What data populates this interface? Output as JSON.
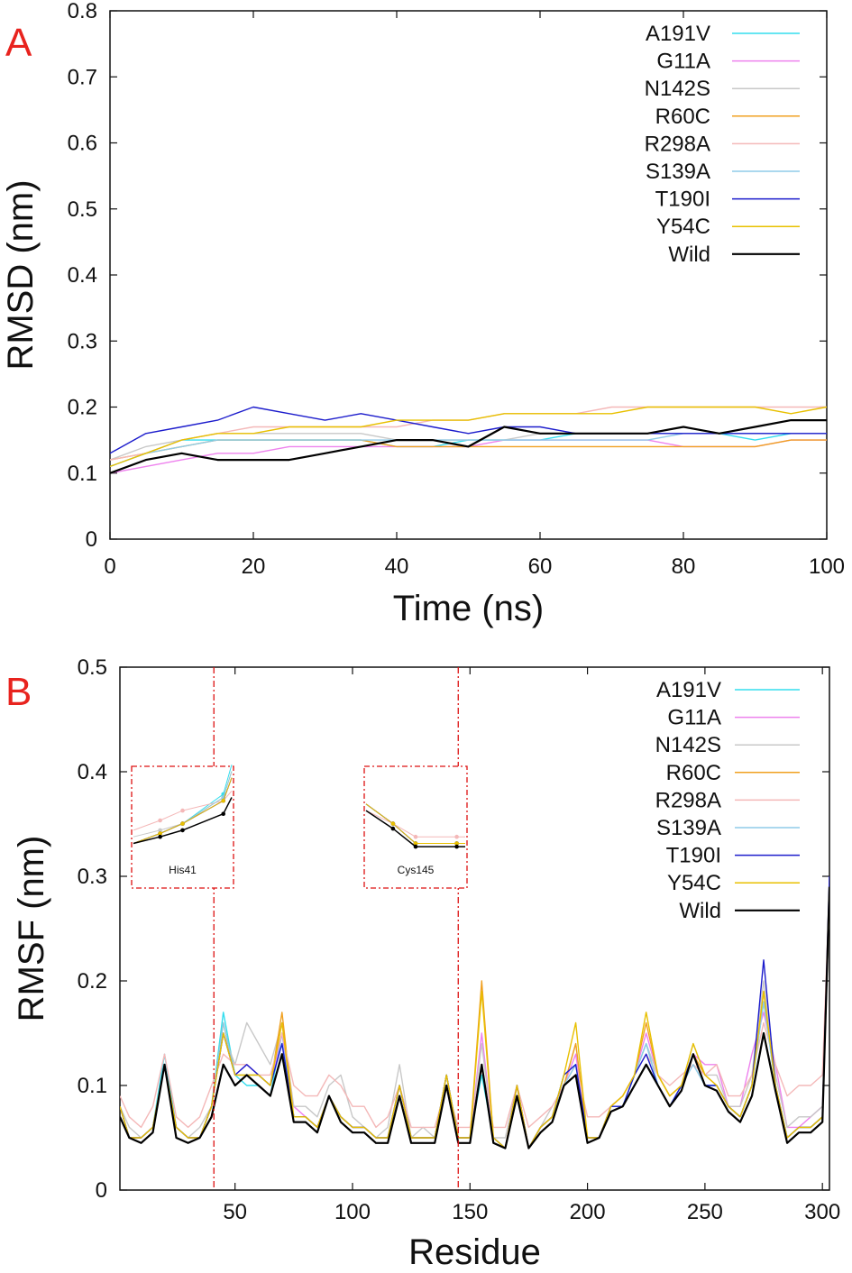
{
  "chart_data": [
    {
      "panel": "A",
      "type": "line",
      "xlabel": "Time (ns)",
      "ylabel": "RMSD (nm)",
      "xlim": [
        0,
        100
      ],
      "ylim": [
        0,
        0.8
      ],
      "xticks": [
        "0",
        "20",
        "40",
        "60",
        "80",
        "100"
      ],
      "yticks": [
        "0",
        "0.1",
        "0.2",
        "0.3",
        "0.4",
        "0.5",
        "0.6",
        "0.7",
        "0.8"
      ],
      "legend_position": "top-right",
      "grid": false,
      "x": [
        0,
        5,
        10,
        15,
        20,
        25,
        30,
        35,
        40,
        45,
        50,
        55,
        60,
        65,
        70,
        75,
        80,
        85,
        90,
        95,
        100
      ],
      "series": [
        {
          "name": "A191V",
          "color": "#33ddee",
          "values": [
            0.11,
            0.13,
            0.15,
            0.15,
            0.15,
            0.15,
            0.15,
            0.15,
            0.14,
            0.14,
            0.15,
            0.15,
            0.15,
            0.16,
            0.16,
            0.16,
            0.16,
            0.16,
            0.15,
            0.16,
            0.16
          ]
        },
        {
          "name": "G11A",
          "color": "#ee82ee",
          "values": [
            0.1,
            0.11,
            0.12,
            0.13,
            0.13,
            0.14,
            0.14,
            0.14,
            0.14,
            0.14,
            0.14,
            0.15,
            0.15,
            0.15,
            0.15,
            0.15,
            0.14,
            0.14,
            0.14,
            0.15,
            0.15
          ]
        },
        {
          "name": "N142S",
          "color": "#c8c8c8",
          "values": [
            0.12,
            0.14,
            0.15,
            0.16,
            0.16,
            0.16,
            0.16,
            0.16,
            0.15,
            0.15,
            0.15,
            0.15,
            0.16,
            0.16,
            0.16,
            0.16,
            0.16,
            0.16,
            0.16,
            0.16,
            0.16
          ]
        },
        {
          "name": "R60C",
          "color": "#f0a020",
          "values": [
            0.12,
            0.13,
            0.14,
            0.15,
            0.15,
            0.15,
            0.15,
            0.15,
            0.14,
            0.14,
            0.14,
            0.14,
            0.14,
            0.14,
            0.14,
            0.14,
            0.14,
            0.14,
            0.14,
            0.15,
            0.15
          ]
        },
        {
          "name": "R298A",
          "color": "#f4b8b8",
          "values": [
            0.12,
            0.13,
            0.15,
            0.16,
            0.17,
            0.17,
            0.17,
            0.17,
            0.17,
            0.18,
            0.18,
            0.19,
            0.19,
            0.19,
            0.2,
            0.2,
            0.2,
            0.2,
            0.2,
            0.2,
            0.2
          ]
        },
        {
          "name": "S139A",
          "color": "#8fcbe8",
          "values": [
            0.11,
            0.13,
            0.14,
            0.15,
            0.15,
            0.15,
            0.15,
            0.15,
            0.15,
            0.15,
            0.15,
            0.15,
            0.15,
            0.15,
            0.15,
            0.15,
            0.16,
            0.16,
            0.16,
            0.16,
            0.16
          ]
        },
        {
          "name": "T190I",
          "color": "#1c1ccc",
          "values": [
            0.13,
            0.16,
            0.17,
            0.18,
            0.2,
            0.19,
            0.18,
            0.19,
            0.18,
            0.17,
            0.16,
            0.17,
            0.17,
            0.16,
            0.16,
            0.16,
            0.16,
            0.16,
            0.16,
            0.16,
            0.16
          ]
        },
        {
          "name": "Y54C",
          "color": "#e8c000",
          "values": [
            0.11,
            0.13,
            0.15,
            0.16,
            0.16,
            0.17,
            0.17,
            0.17,
            0.18,
            0.18,
            0.18,
            0.19,
            0.19,
            0.19,
            0.19,
            0.2,
            0.2,
            0.2,
            0.2,
            0.19,
            0.2
          ]
        },
        {
          "name": "Wild",
          "color": "#000000",
          "values": [
            0.1,
            0.12,
            0.13,
            0.12,
            0.12,
            0.12,
            0.13,
            0.14,
            0.15,
            0.15,
            0.14,
            0.17,
            0.16,
            0.16,
            0.16,
            0.16,
            0.17,
            0.16,
            0.17,
            0.18,
            0.18
          ]
        }
      ]
    },
    {
      "panel": "B",
      "type": "line",
      "xlabel": "Residue",
      "ylabel": "RMSF (nm)",
      "xlim": [
        1,
        303
      ],
      "ylim": [
        0,
        0.5
      ],
      "xticks": [
        "50",
        "100",
        "150",
        "200",
        "250",
        "300"
      ],
      "yticks": [
        "0",
        "0.1",
        "0.2",
        "0.3",
        "0.4",
        "0.5"
      ],
      "legend_position": "top-right",
      "grid": false,
      "markers": [
        {
          "label": "His41",
          "x": 41
        },
        {
          "label": "Cys145",
          "x": 145
        }
      ],
      "x": [
        1,
        5,
        10,
        15,
        20,
        25,
        30,
        35,
        40,
        45,
        50,
        55,
        60,
        65,
        70,
        75,
        80,
        85,
        90,
        95,
        100,
        105,
        110,
        115,
        120,
        125,
        130,
        135,
        140,
        145,
        150,
        155,
        160,
        165,
        170,
        175,
        180,
        185,
        190,
        195,
        200,
        205,
        210,
        215,
        220,
        225,
        230,
        235,
        240,
        245,
        250,
        255,
        260,
        265,
        270,
        275,
        280,
        285,
        290,
        295,
        300,
        303
      ],
      "series": [
        {
          "name": "A191V",
          "color": "#33ddee",
          "values": [
            0.08,
            0.05,
            0.05,
            0.06,
            0.13,
            0.06,
            0.05,
            0.05,
            0.08,
            0.17,
            0.11,
            0.1,
            0.1,
            0.09,
            0.15,
            0.07,
            0.07,
            0.06,
            0.09,
            0.07,
            0.06,
            0.06,
            0.05,
            0.05,
            0.1,
            0.05,
            0.05,
            0.05,
            0.11,
            0.05,
            0.05,
            0.11,
            0.05,
            0.04,
            0.09,
            0.04,
            0.06,
            0.07,
            0.11,
            0.12,
            0.05,
            0.05,
            0.08,
            0.08,
            0.11,
            0.14,
            0.1,
            0.08,
            0.1,
            0.13,
            0.1,
            0.1,
            0.08,
            0.07,
            0.1,
            0.18,
            0.1,
            0.05,
            0.06,
            0.06,
            0.07,
            0.28
          ]
        },
        {
          "name": "G11A",
          "color": "#ee82ee",
          "values": [
            0.08,
            0.05,
            0.05,
            0.06,
            0.12,
            0.06,
            0.05,
            0.05,
            0.08,
            0.15,
            0.11,
            0.12,
            0.11,
            0.1,
            0.15,
            0.08,
            0.07,
            0.06,
            0.09,
            0.07,
            0.06,
            0.06,
            0.05,
            0.05,
            0.1,
            0.05,
            0.05,
            0.05,
            0.11,
            0.05,
            0.05,
            0.15,
            0.05,
            0.04,
            0.1,
            0.04,
            0.06,
            0.07,
            0.1,
            0.13,
            0.05,
            0.05,
            0.08,
            0.09,
            0.11,
            0.15,
            0.11,
            0.09,
            0.1,
            0.13,
            0.12,
            0.12,
            0.08,
            0.08,
            0.13,
            0.17,
            0.12,
            0.06,
            0.06,
            0.07,
            0.08,
            0.28
          ]
        },
        {
          "name": "N142S",
          "color": "#c8c8c8",
          "values": [
            0.08,
            0.06,
            0.05,
            0.06,
            0.12,
            0.06,
            0.05,
            0.06,
            0.08,
            0.15,
            0.12,
            0.16,
            0.14,
            0.12,
            0.16,
            0.08,
            0.08,
            0.07,
            0.1,
            0.11,
            0.07,
            0.06,
            0.05,
            0.06,
            0.12,
            0.05,
            0.06,
            0.05,
            0.11,
            0.05,
            0.05,
            0.14,
            0.05,
            0.05,
            0.1,
            0.04,
            0.06,
            0.08,
            0.1,
            0.14,
            0.05,
            0.05,
            0.08,
            0.09,
            0.11,
            0.14,
            0.11,
            0.09,
            0.1,
            0.14,
            0.11,
            0.11,
            0.08,
            0.08,
            0.11,
            0.2,
            0.11,
            0.06,
            0.07,
            0.07,
            0.08,
            0.29
          ]
        },
        {
          "name": "R60C",
          "color": "#f0a020",
          "values": [
            0.08,
            0.05,
            0.05,
            0.06,
            0.12,
            0.06,
            0.05,
            0.05,
            0.08,
            0.16,
            0.11,
            0.11,
            0.11,
            0.1,
            0.17,
            0.07,
            0.07,
            0.06,
            0.09,
            0.07,
            0.06,
            0.06,
            0.05,
            0.05,
            0.1,
            0.05,
            0.05,
            0.05,
            0.11,
            0.05,
            0.05,
            0.2,
            0.05,
            0.04,
            0.1,
            0.04,
            0.06,
            0.07,
            0.1,
            0.14,
            0.05,
            0.05,
            0.08,
            0.09,
            0.11,
            0.16,
            0.11,
            0.09,
            0.1,
            0.13,
            0.11,
            0.1,
            0.08,
            0.07,
            0.1,
            0.19,
            0.1,
            0.05,
            0.06,
            0.06,
            0.07,
            0.28
          ]
        },
        {
          "name": "R298A",
          "color": "#f4b8b8",
          "values": [
            0.09,
            0.07,
            0.06,
            0.08,
            0.13,
            0.07,
            0.06,
            0.07,
            0.1,
            0.13,
            0.12,
            0.12,
            0.11,
            0.11,
            0.15,
            0.1,
            0.09,
            0.09,
            0.11,
            0.1,
            0.08,
            0.08,
            0.06,
            0.07,
            0.1,
            0.06,
            0.06,
            0.06,
            0.1,
            0.06,
            0.06,
            0.12,
            0.06,
            0.06,
            0.1,
            0.06,
            0.07,
            0.08,
            0.1,
            0.12,
            0.07,
            0.07,
            0.08,
            0.09,
            0.11,
            0.13,
            0.11,
            0.1,
            0.11,
            0.12,
            0.11,
            0.12,
            0.09,
            0.09,
            0.11,
            0.16,
            0.12,
            0.09,
            0.1,
            0.1,
            0.11,
            0.29
          ]
        },
        {
          "name": "S139A",
          "color": "#8fcbe8",
          "values": [
            0.08,
            0.05,
            0.05,
            0.06,
            0.12,
            0.06,
            0.05,
            0.05,
            0.08,
            0.16,
            0.11,
            0.11,
            0.11,
            0.1,
            0.14,
            0.07,
            0.07,
            0.06,
            0.09,
            0.07,
            0.06,
            0.06,
            0.05,
            0.05,
            0.1,
            0.05,
            0.05,
            0.05,
            0.11,
            0.05,
            0.05,
            0.12,
            0.05,
            0.04,
            0.09,
            0.04,
            0.06,
            0.07,
            0.1,
            0.12,
            0.05,
            0.05,
            0.08,
            0.08,
            0.11,
            0.14,
            0.1,
            0.08,
            0.1,
            0.12,
            0.1,
            0.1,
            0.08,
            0.07,
            0.1,
            0.18,
            0.1,
            0.05,
            0.06,
            0.06,
            0.07,
            0.28
          ]
        },
        {
          "name": "T190I",
          "color": "#1c1ccc",
          "values": [
            0.08,
            0.05,
            0.05,
            0.06,
            0.12,
            0.06,
            0.05,
            0.05,
            0.08,
            0.15,
            0.11,
            0.12,
            0.11,
            0.1,
            0.14,
            0.07,
            0.07,
            0.06,
            0.09,
            0.07,
            0.06,
            0.06,
            0.05,
            0.05,
            0.1,
            0.05,
            0.05,
            0.05,
            0.11,
            0.05,
            0.05,
            0.12,
            0.05,
            0.04,
            0.1,
            0.04,
            0.06,
            0.07,
            0.11,
            0.12,
            0.05,
            0.05,
            0.08,
            0.08,
            0.11,
            0.13,
            0.1,
            0.08,
            0.1,
            0.13,
            0.1,
            0.1,
            0.08,
            0.07,
            0.1,
            0.22,
            0.1,
            0.05,
            0.06,
            0.06,
            0.07,
            0.3
          ]
        },
        {
          "name": "Y54C",
          "color": "#e8c000",
          "values": [
            0.08,
            0.05,
            0.05,
            0.06,
            0.12,
            0.06,
            0.05,
            0.05,
            0.08,
            0.15,
            0.11,
            0.11,
            0.11,
            0.1,
            0.16,
            0.07,
            0.07,
            0.06,
            0.09,
            0.07,
            0.06,
            0.06,
            0.05,
            0.05,
            0.1,
            0.05,
            0.05,
            0.05,
            0.11,
            0.05,
            0.05,
            0.19,
            0.05,
            0.04,
            0.1,
            0.04,
            0.06,
            0.07,
            0.11,
            0.16,
            0.05,
            0.05,
            0.08,
            0.09,
            0.11,
            0.17,
            0.11,
            0.09,
            0.1,
            0.14,
            0.11,
            0.1,
            0.08,
            0.07,
            0.1,
            0.19,
            0.1,
            0.05,
            0.06,
            0.06,
            0.07,
            0.28
          ]
        },
        {
          "name": "Wild",
          "color": "#000000",
          "values": [
            0.07,
            0.05,
            0.045,
            0.055,
            0.12,
            0.05,
            0.045,
            0.05,
            0.07,
            0.12,
            0.1,
            0.11,
            0.1,
            0.09,
            0.13,
            0.065,
            0.065,
            0.055,
            0.09,
            0.065,
            0.055,
            0.055,
            0.045,
            0.045,
            0.09,
            0.045,
            0.045,
            0.045,
            0.1,
            0.045,
            0.045,
            0.12,
            0.045,
            0.04,
            0.09,
            0.04,
            0.055,
            0.065,
            0.1,
            0.11,
            0.045,
            0.05,
            0.075,
            0.08,
            0.1,
            0.12,
            0.1,
            0.08,
            0.095,
            0.13,
            0.1,
            0.095,
            0.075,
            0.065,
            0.09,
            0.15,
            0.095,
            0.045,
            0.055,
            0.055,
            0.065,
            0.29
          ]
        }
      ]
    }
  ],
  "panels": {
    "A": {
      "letter": "A"
    },
    "B": {
      "letter": "B"
    }
  },
  "insets": [
    {
      "label": "His41"
    },
    {
      "label": "Cys145"
    }
  ]
}
